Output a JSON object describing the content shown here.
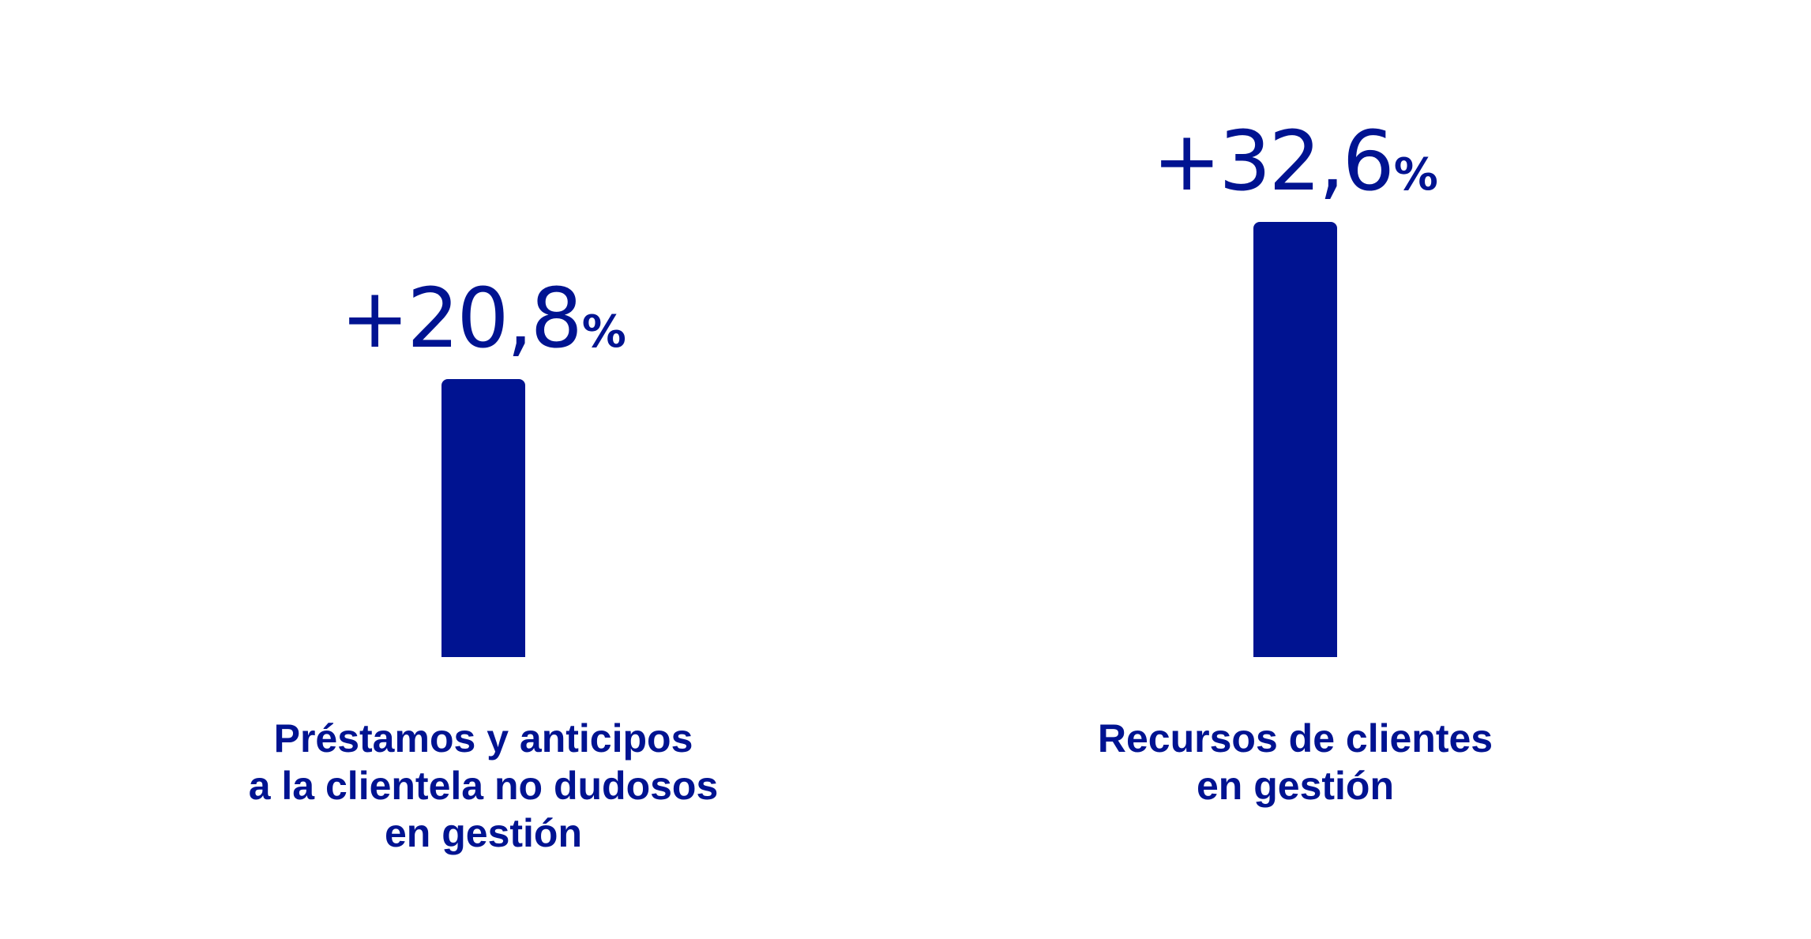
{
  "chart_data": {
    "type": "bar",
    "title": "",
    "xlabel": "",
    "ylabel": "",
    "color": "#001391",
    "unit": "%",
    "grid": false,
    "legend": "none",
    "ylim": [
      0,
      40
    ],
    "categories": [
      "Préstamos y anticipos a la clientela no dudosos en gestión",
      "Recursos de clientes en gestión"
    ],
    "category_lines": [
      [
        "Préstamos y anticipos",
        "a la clientela no dudosos",
        "en gestión"
      ],
      [
        "Recursos de clientes",
        "en gestión"
      ]
    ],
    "values": [
      20.8,
      32.6
    ],
    "value_labels": [
      "+20,8",
      "+32,6"
    ]
  }
}
